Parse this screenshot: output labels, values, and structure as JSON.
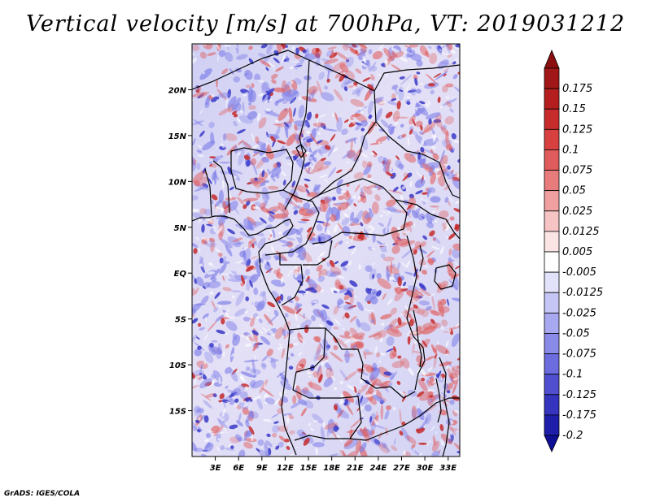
{
  "title": "Vertical velocity [m/s] at 700hPa, VT: 2019031212",
  "credit": "GrADS: IGES/COLA",
  "map": {
    "variable": "vertical velocity",
    "units": "m/s",
    "level": "700hPa",
    "valid_time": "2019031212",
    "lon_range": [
      0,
      34.5
    ],
    "lat_range": [
      -20,
      25
    ],
    "x_ticks": [
      {
        "value": 3,
        "label": "3E"
      },
      {
        "value": 6,
        "label": "6E"
      },
      {
        "value": 9,
        "label": "9E"
      },
      {
        "value": 12,
        "label": "12E"
      },
      {
        "value": 15,
        "label": "15E"
      },
      {
        "value": 18,
        "label": "18E"
      },
      {
        "value": 21,
        "label": "21E"
      },
      {
        "value": 24,
        "label": "24E"
      },
      {
        "value": 27,
        "label": "27E"
      },
      {
        "value": 30,
        "label": "30E"
      },
      {
        "value": 33,
        "label": "33E"
      }
    ],
    "y_ticks": [
      {
        "value": 20,
        "label": "20N"
      },
      {
        "value": 15,
        "label": "15N"
      },
      {
        "value": 10,
        "label": "10N"
      },
      {
        "value": 5,
        "label": "5N"
      },
      {
        "value": 0,
        "label": "EQ"
      },
      {
        "value": -5,
        "label": "5S"
      },
      {
        "value": -10,
        "label": "10S"
      },
      {
        "value": -15,
        "label": "15S"
      }
    ]
  },
  "colorbar": {
    "levels": [
      {
        "label": "0.175",
        "color": "#a11616"
      },
      {
        "label": "0.15",
        "color": "#b51e1e"
      },
      {
        "label": "0.125",
        "color": "#c82b2b"
      },
      {
        "label": "0.1",
        "color": "#d84040"
      },
      {
        "label": "0.075",
        "color": "#e05c5c"
      },
      {
        "label": "0.05",
        "color": "#e87c7c"
      },
      {
        "label": "0.025",
        "color": "#f0a0a0"
      },
      {
        "label": "0.0125",
        "color": "#f6c4c4"
      },
      {
        "label": "0.005",
        "color": "#fbe4e4"
      },
      {
        "label": "-0.005",
        "color": "#ffffff"
      },
      {
        "label": "-0.0125",
        "color": "#e2e2fb"
      },
      {
        "label": "-0.025",
        "color": "#c6c6f6"
      },
      {
        "label": "-0.05",
        "color": "#a8a8f0"
      },
      {
        "label": "-0.075",
        "color": "#8a8ae8"
      },
      {
        "label": "-0.1",
        "color": "#6c6cde"
      },
      {
        "label": "-0.125",
        "color": "#4f4fd0"
      },
      {
        "label": "-0.175",
        "color": "#3434bf"
      },
      {
        "label": "-0.2",
        "color": "#1e1eaa"
      }
    ],
    "top_arrow_color": "#8c0e0e",
    "bottom_arrow_color": "#0e0e96"
  },
  "colors": {
    "field_positive": "#e06060",
    "field_negative": "#8080e8",
    "field_base": "#c8c8f2",
    "borders": "#000000"
  }
}
